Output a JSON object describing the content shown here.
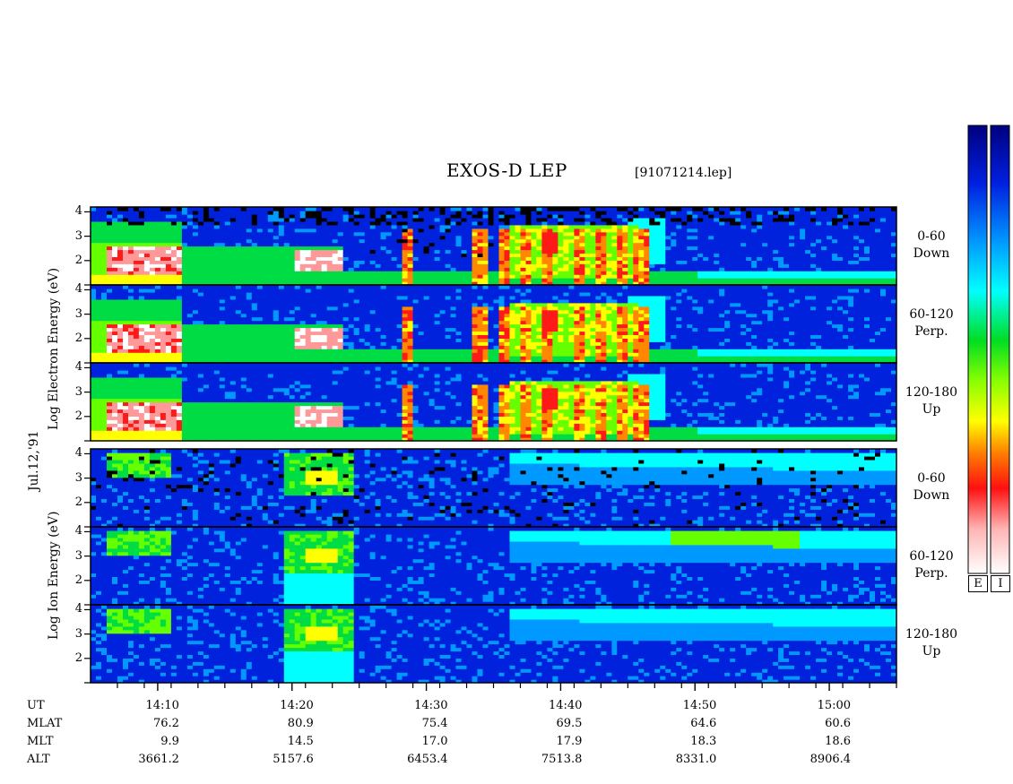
{
  "chart_data": {
    "type": "heatmap",
    "title": "EXOS-D LEP",
    "subtitle": "[91071214.lep]",
    "date_label": "Jul.12,'91",
    "electron_ylabel": "Log  Electron  Energy  (eV)",
    "ion_ylabel": "Log  Ion  Energy  (eV)",
    "ylim": [
      1,
      4.2
    ],
    "y_ticks": [
      "2",
      "3",
      "4"
    ],
    "xlim": [
      "14:05",
      "15:05"
    ],
    "panels": [
      {
        "species": "electron",
        "pitch": "0-60",
        "dir": "Down"
      },
      {
        "species": "electron",
        "pitch": "60-120",
        "dir": "Perp."
      },
      {
        "species": "electron",
        "pitch": "120-180",
        "dir": "Up"
      },
      {
        "species": "ion",
        "pitch": "0-60",
        "dir": "Down"
      },
      {
        "species": "ion",
        "pitch": "60-120",
        "dir": "Perp."
      },
      {
        "species": "ion",
        "pitch": "120-180",
        "dir": "Up"
      }
    ],
    "time_axis": {
      "row_labels": [
        "UT",
        "MLAT",
        "MLT",
        "ALT"
      ],
      "columns": [
        {
          "UT": "14:10",
          "MLAT": "76.2",
          "MLT": "9.9",
          "ALT": "3661.2"
        },
        {
          "UT": "14:20",
          "MLAT": "80.9",
          "MLT": "14.5",
          "ALT": "5157.6"
        },
        {
          "UT": "14:30",
          "MLAT": "75.4",
          "MLT": "17.0",
          "ALT": "6453.4"
        },
        {
          "UT": "14:40",
          "MLAT": "69.5",
          "MLT": "17.9",
          "ALT": "7513.8"
        },
        {
          "UT": "14:50",
          "MLAT": "64.6",
          "MLT": "18.3",
          "ALT": "8331.0"
        },
        {
          "UT": "15:00",
          "MLAT": "60.6",
          "MLT": "18.6",
          "ALT": "8906.4"
        }
      ]
    },
    "colorbars": [
      {
        "label": "E"
      },
      {
        "label": "I"
      }
    ]
  },
  "colors": {
    "scale": [
      "#ffffff",
      "#ff9999",
      "#ff1a1a",
      "#ff8800",
      "#ffff00",
      "#66ff00",
      "#00dd44",
      "#00ffff",
      "#0099ff",
      "#0022dd",
      "#000088"
    ],
    "background": "#0a1fd0"
  }
}
